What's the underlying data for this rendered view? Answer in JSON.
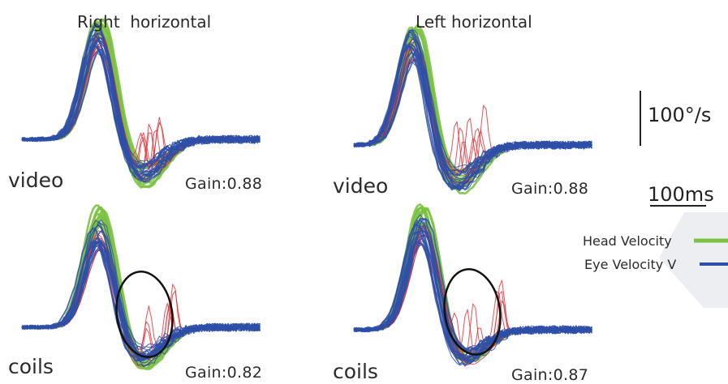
{
  "columns": [
    {
      "title": "Right  horizontal"
    },
    {
      "title": "Left horizontal"
    }
  ],
  "rows": [
    {
      "label": "video"
    },
    {
      "label": "coils"
    }
  ],
  "gains": {
    "right_video": "Gain:0.88",
    "left_video": "Gain:0.88",
    "right_coils": "Gain:0.82",
    "left_coils": "Gain:0.87"
  },
  "scale_bars": {
    "velocity": "100°/s",
    "time": "100ms"
  },
  "legend": [
    {
      "label": "Head Velocity",
      "color": "#7cc242"
    },
    {
      "label": "Eye Velocity V",
      "color": "#2e4fa8"
    }
  ],
  "colors": {
    "head": "#7cc242",
    "eye": "#2e4fa8",
    "saccade": "#e8333a",
    "annotation_ellipse": "#111111"
  },
  "chart_data": {
    "type": "line",
    "title": "",
    "xlabel": "",
    "ylabel": "",
    "panels": [
      {
        "column": "Right  horizontal",
        "row": "video",
        "gain": 0.88,
        "peak_head_velocity_deg_s": 230,
        "undershoot_deg_s": -70,
        "highlighted": false,
        "head_traces": 12,
        "eye_traces": 20,
        "saccade_traces": 8
      },
      {
        "column": "Left horizontal",
        "row": "video",
        "gain": 0.88,
        "peak_head_velocity_deg_s": 230,
        "undershoot_deg_s": -70,
        "highlighted": false,
        "head_traces": 12,
        "eye_traces": 20,
        "saccade_traces": 8
      },
      {
        "column": "Right  horizontal",
        "row": "coils",
        "gain": 0.82,
        "peak_head_velocity_deg_s": 230,
        "undershoot_deg_s": -60,
        "highlighted": true,
        "head_traces": 12,
        "eye_traces": 20,
        "saccade_traces": 8
      },
      {
        "column": "Left horizontal",
        "row": "coils",
        "gain": 0.87,
        "peak_head_velocity_deg_s": 230,
        "undershoot_deg_s": -55,
        "highlighted": true,
        "head_traces": 12,
        "eye_traces": 20,
        "saccade_traces": 8
      }
    ],
    "scale": {
      "velocity_deg_s": 100,
      "time_ms": 100
    },
    "series": [
      {
        "name": "Head Velocity",
        "color": "#7cc242"
      },
      {
        "name": "Eye Velocity V",
        "color": "#2e4fa8"
      }
    ]
  }
}
